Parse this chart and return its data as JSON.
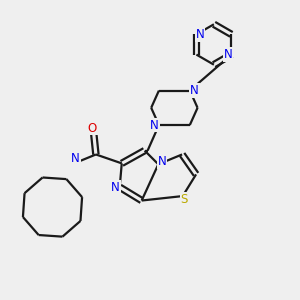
{
  "bg_color": "#efefef",
  "bond_color": "#1a1a1a",
  "N_color": "#0000ee",
  "O_color": "#dd0000",
  "S_color": "#bbaa00",
  "line_width": 1.6,
  "figsize": [
    3.0,
    3.0
  ],
  "dpi": 100,
  "xlim": [
    0,
    10
  ],
  "ylim": [
    0,
    10
  ]
}
